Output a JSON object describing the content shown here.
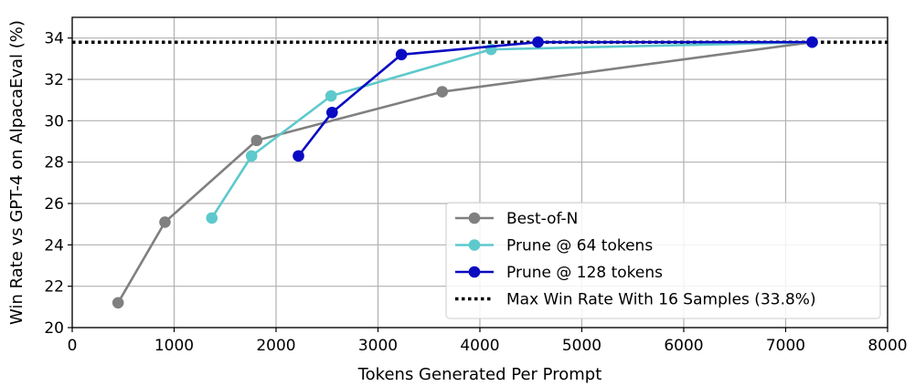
{
  "chart_data": {
    "type": "line",
    "xlabel": "Tokens Generated Per Prompt",
    "ylabel": "Win Rate vs GPT-4 on AlpacaEval (%)",
    "xlim": [
      0,
      8000
    ],
    "ylim": [
      20,
      35
    ],
    "xticks": [
      0,
      1000,
      2000,
      3000,
      4000,
      5000,
      6000,
      7000,
      8000
    ],
    "yticks": [
      20,
      22,
      24,
      26,
      28,
      30,
      32,
      34
    ],
    "grid": true,
    "legend_position": "lower-right",
    "series": [
      {
        "name": "Best-of-N",
        "color": "#808080",
        "marker": "circle",
        "x": [
          450,
          910,
          1810,
          3630,
          7260
        ],
        "y": [
          21.2,
          25.1,
          29.05,
          31.4,
          33.8
        ]
      },
      {
        "name": "Prune @ 64 tokens",
        "color": "#5ec9cc",
        "marker": "circle",
        "x": [
          1370,
          1760,
          2540,
          4110,
          7260
        ],
        "y": [
          25.3,
          28.3,
          31.2,
          33.45,
          33.8
        ]
      },
      {
        "name": "Prune @ 128 tokens",
        "color": "#0a0ac2",
        "marker": "circle",
        "x": [
          2220,
          2550,
          3230,
          4570,
          7260
        ],
        "y": [
          28.3,
          30.4,
          33.2,
          33.8,
          33.8
        ]
      }
    ],
    "reference_line": {
      "name": "Max Win Rate With 16 Samples (33.8%)",
      "y": 33.8,
      "style": "dotted",
      "color": "#000000"
    }
  }
}
